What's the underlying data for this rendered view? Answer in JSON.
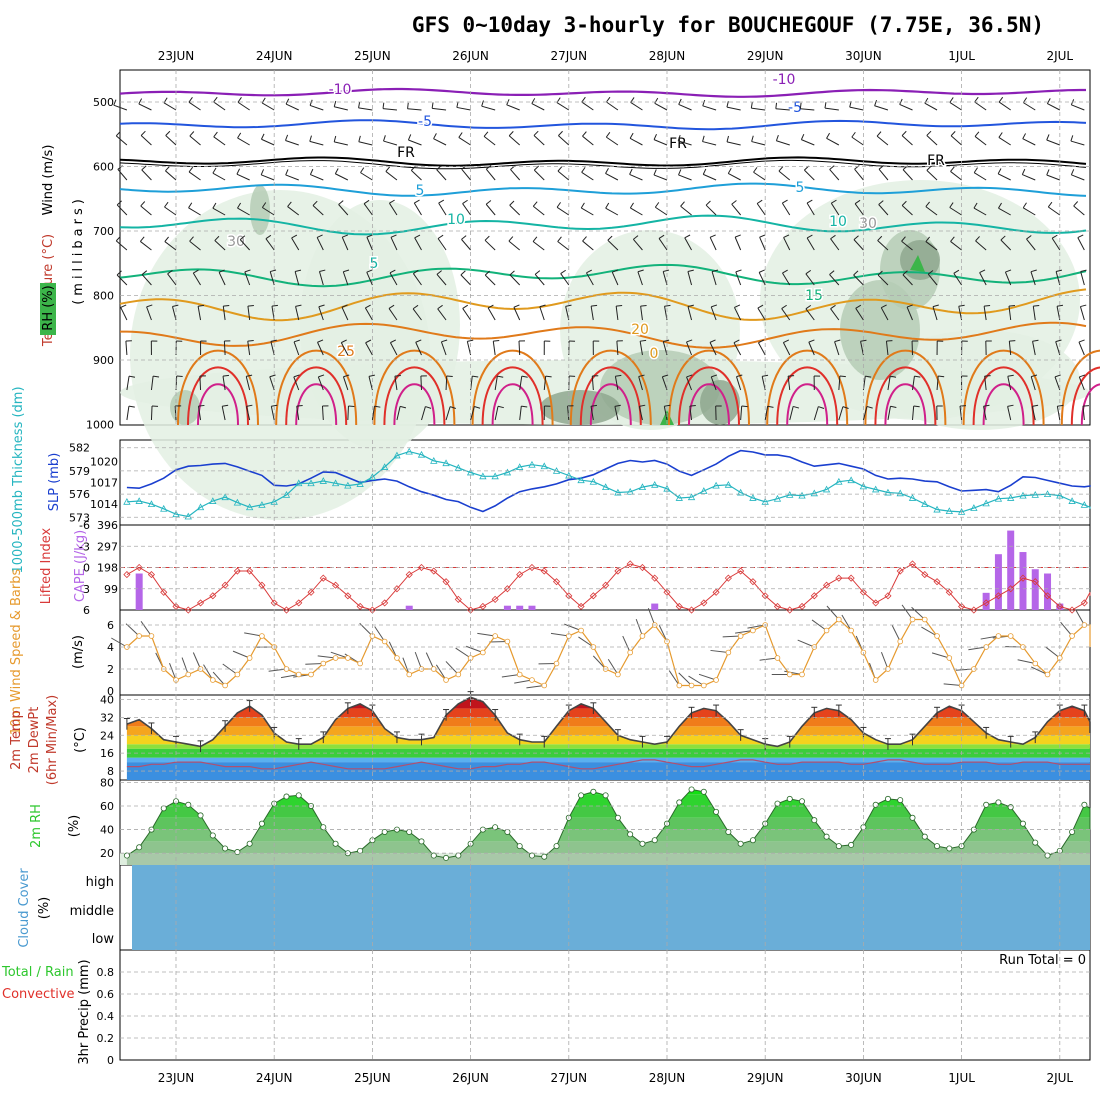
{
  "title": "GFS 0~10day 3-hourly for BOUCHEGOUF (7.75E, 36.5N)",
  "dates": [
    "23JUN",
    "24JUN",
    "25JUN",
    "26JUN",
    "27JUN",
    "28JUN",
    "29JUN",
    "30JUN",
    "1JUL",
    "2JUL"
  ],
  "colors": {
    "grid": "#aaaaaa",
    "rh_light": "#e3f0e3",
    "rh_mid": "#b5cdb5",
    "rh_dark": "#8fa88f",
    "rh_green": "#3cb54a",
    "purple": "#8a1fb5",
    "blue": "#2255dd",
    "lightblue": "#1e9fd8",
    "teal": "#14b4a4",
    "green_t": "#12b27a",
    "orange": "#e09a1e",
    "dkorange": "#e07a1a",
    "red": "#e0302a",
    "magenta": "#d0208a",
    "slp": "#1a3fcf",
    "thick": "#25b5c0",
    "li": "#d93a3a",
    "cape": "#b566e8",
    "wind": "#e69a2e",
    "rh2m": "#2ec72e",
    "cloud": "#6aaed8"
  },
  "panels": {
    "profile": {
      "ylabel_wind": "Wind (m/s)",
      "ylabel_temp": "Temperature (°C)",
      "ylabel_rh": "RH (%)",
      "ylabel_mb": "(millibars)",
      "levels": [
        "500",
        "600",
        "700",
        "800",
        "900",
        "1000"
      ],
      "contour_labels": {
        "m10": "-10",
        "m5": "-5",
        "fr": "FR",
        "p5": "5",
        "p10": "10",
        "p15": "15",
        "p20": "20",
        "p25": "25",
        "p0": "0",
        "rh30": "30"
      }
    },
    "slp": {
      "ylabel_thick": "1000-500mb Thickness (dm)",
      "ylabel_slp": "SLP (mb)",
      "thick_ticks": [
        "582",
        "579",
        "576",
        "573"
      ],
      "slp_ticks": [
        "1020",
        "1017",
        "1014"
      ]
    },
    "li": {
      "ylabel_li": "Lifted Index",
      "ylabel_cape": "CAPE (J/kg)",
      "li_ticks": [
        "-6",
        "-3",
        "0",
        "3",
        "6"
      ],
      "cape_ticks": [
        "396",
        "297",
        "198",
        "99"
      ]
    },
    "wind": {
      "ylabel": "10m Wind Speed & Barbs",
      "unit": "(m/s)",
      "ticks": [
        "6",
        "4",
        "2",
        "0"
      ]
    },
    "temp": {
      "ylabel1": "2m Temp",
      "ylabel2": "2m DewPt",
      "ylabel3": "(6hr Min/Max)",
      "unit": "(°C)",
      "ticks": [
        "40",
        "32",
        "24",
        "16",
        "8"
      ]
    },
    "rh": {
      "ylabel": "2m RH",
      "unit": "(%)",
      "ticks": [
        "80",
        "60",
        "40",
        "20"
      ]
    },
    "cloud": {
      "ylabel": "Cloud Cover",
      "unit": "(%)",
      "levels": [
        "high",
        "middle",
        "low"
      ]
    },
    "precip": {
      "ylabel_total": "Total / Rain",
      "ylabel_conv": "Convective",
      "ylabel": "3hr Precip (mm)",
      "run_total": "Run Total = 0",
      "ticks": [
        "0.8",
        "0.6",
        "0.4",
        "0.2",
        "0"
      ]
    }
  },
  "chart_data": [
    {
      "type": "line",
      "title": "SLP (mb)",
      "x_start": "22JUN 12Z",
      "x_step_hours": 3,
      "ylim": [
        1011,
        1023
      ],
      "series": [
        {
          "name": "SLP (mb)",
          "values": [
            1016.3,
            1016.2,
            1016.8,
            1017.6,
            1018.8,
            1019.3,
            1019.4,
            1019.6,
            1019.7,
            1019.2,
            1018.6,
            1018.0,
            1016.6,
            1016.5,
            1016.8,
            1017.6,
            1018.5,
            1018.4,
            1017.7,
            1017.0,
            1017.3,
            1017.5,
            1017.2,
            1016.4,
            1015.7,
            1015.2,
            1014.6,
            1014.3,
            1013.5,
            1012.9,
            1013.7,
            1014.8,
            1015.7,
            1016.1,
            1016.4,
            1016.8,
            1017.4,
            1017.6,
            1018.1,
            1018.9,
            1019.7,
            1020.1,
            1019.9,
            1020.1,
            1019.6,
            1018.6,
            1018.0,
            1018.8,
            1019.6,
            1020.7,
            1021.5,
            1021.3,
            1020.9,
            1020.9,
            1020.6,
            1019.9,
            1019.3,
            1019.5,
            1019.7,
            1019.3,
            1018.9,
            1018.0,
            1017.5,
            1017.6,
            1017.5,
            1017.2,
            1017.1,
            1016.4,
            1015.8,
            1015.9,
            1016.0,
            1015.7,
            1016.6,
            1017.8,
            1017.7,
            1017.3,
            1016.9,
            1016.5,
            1016.4,
            1016.5,
            1016.4
          ]
        }
      ]
    },
    {
      "type": "line",
      "title": "1000-500mb Thickness (dm)",
      "x_start": "22JUN 12Z",
      "x_step_hours": 3,
      "ylim": [
        572,
        583
      ],
      "series": [
        {
          "name": "1000-500mb Thickness (dm)",
          "values": [
            575.0,
            575.1,
            574.7,
            574.1,
            573.4,
            573.1,
            574.3,
            575.1,
            575.6,
            574.9,
            574.3,
            574.6,
            575.0,
            575.9,
            577.4,
            577.4,
            577.7,
            577.4,
            577.1,
            577.3,
            578.2,
            579.5,
            581.0,
            581.5,
            581.1,
            580.3,
            580.0,
            579.4,
            578.8,
            578.3,
            578.3,
            578.8,
            579.5,
            579.8,
            579.6,
            579.0,
            578.4,
            577.8,
            577.6,
            576.9,
            576.2,
            576.3,
            576.9,
            577.2,
            576.7,
            575.5,
            575.6,
            576.4,
            577.1,
            577.2,
            576.2,
            575.5,
            575.0,
            575.4,
            575.9,
            575.8,
            576.1,
            576.6,
            577.6,
            577.8,
            577.0,
            576.6,
            576.2,
            576.1,
            575.5,
            574.7,
            574.0,
            573.8,
            573.7,
            574.2,
            574.8,
            575.4,
            575.5,
            575.8,
            575.9,
            576.0,
            575.8,
            575.1,
            574.6,
            574.3,
            574.1
          ]
        }
      ]
    },
    {
      "type": "line",
      "title": "Lifted Index",
      "x_start": "22JUN 12Z",
      "x_step_hours": 3,
      "ylim": [
        6,
        -6
      ],
      "series": [
        {
          "name": "Lifted Index",
          "values": [
            1.0,
            0.0,
            1.0,
            3.5,
            5.5,
            6.0,
            5.0,
            4.0,
            2.5,
            0.5,
            0.5,
            2.5,
            5.0,
            6.0,
            5.0,
            3.5,
            1.5,
            2.5,
            4.0,
            5.5,
            6.0,
            5.0,
            3.0,
            1.0,
            0.0,
            0.5,
            2.0,
            4.5,
            6.0,
            5.5,
            4.5,
            3.0,
            1.0,
            0.0,
            0.5,
            2.0,
            4.0,
            5.5,
            4.0,
            2.5,
            0.5,
            -0.5,
            0.0,
            1.5,
            3.5,
            5.5,
            6.0,
            5.0,
            3.5,
            1.5,
            0.5,
            2.0,
            4.0,
            5.5,
            6.0,
            5.5,
            4.0,
            2.5,
            1.5,
            1.5,
            3.5,
            5.0,
            4.0,
            0.5,
            -0.5,
            1.0,
            2.0,
            3.5,
            5.5,
            6.0,
            5.0,
            4.0,
            3.0,
            1.5,
            2.0,
            4.0,
            5.5,
            6.0,
            5.0,
            3.5,
            4.0
          ]
        }
      ]
    },
    {
      "type": "bar",
      "title": "CAPE (J/kg)",
      "x_start": "22JUN 12Z",
      "x_step_hours": 3,
      "ylim": [
        0,
        396
      ],
      "series": [
        {
          "name": "CAPE (J/kg)",
          "values": [
            0,
            170,
            0,
            0,
            0,
            0,
            0,
            0,
            0,
            0,
            0,
            0,
            0,
            0,
            0,
            0,
            0,
            0,
            0,
            0,
            0,
            0,
            0,
            20,
            0,
            0,
            0,
            0,
            0,
            0,
            0,
            20,
            20,
            20,
            0,
            0,
            0,
            0,
            0,
            0,
            0,
            0,
            0,
            30,
            0,
            0,
            0,
            0,
            0,
            0,
            0,
            0,
            0,
            0,
            0,
            0,
            0,
            0,
            0,
            0,
            0,
            0,
            0,
            0,
            0,
            0,
            0,
            0,
            0,
            0,
            80,
            260,
            370,
            270,
            190,
            170,
            30,
            0,
            0,
            0,
            0,
            0,
            0,
            0,
            0,
            0,
            0,
            0,
            0,
            0,
            0,
            0,
            0,
            0,
            0,
            0,
            0,
            0,
            220,
            210,
            70,
            0
          ]
        }
      ]
    },
    {
      "type": "line",
      "title": "10m Wind Speed",
      "x_start": "22JUN 12Z",
      "x_step_hours": 3,
      "ylim": [
        0,
        7
      ],
      "series": [
        {
          "name": "10m Wind Speed (m/s)",
          "values": [
            4.0,
            5.0,
            5.0,
            2.0,
            1.0,
            1.5,
            2.0,
            1.0,
            0.5,
            1.5,
            3.0,
            5.0,
            4.0,
            2.0,
            1.5,
            1.5,
            2.5,
            3.0,
            3.0,
            2.5,
            5.0,
            4.5,
            3.0,
            1.5,
            2.0,
            2.0,
            1.0,
            1.5,
            3.0,
            3.5,
            5.0,
            4.5,
            1.5,
            1.0,
            0.5,
            2.5,
            5.0,
            5.5,
            4.0,
            2.0,
            1.5,
            3.5,
            5.0,
            6.0,
            4.5,
            0.5,
            0.5,
            0.5,
            1.0,
            3.5,
            5.0,
            5.5,
            6.0,
            3.0,
            1.5,
            1.5,
            4.0,
            5.5,
            6.5,
            5.5,
            3.5,
            1.0,
            2.0,
            4.5,
            6.5,
            6.5,
            5.0,
            3.0,
            0.5,
            2.0,
            4.0,
            5.0,
            5.0,
            4.0,
            2.5,
            1.5,
            3.0,
            5.0,
            6.0,
            6.0,
            4.0
          ]
        }
      ]
    },
    {
      "type": "area",
      "title": "2m Temp",
      "x_start": "22JUN 12Z",
      "x_step_hours": 3,
      "ylim": [
        4,
        42
      ],
      "series": [
        {
          "name": "2m Temp (°C)",
          "values": [
            29,
            31,
            27,
            22,
            21,
            20,
            19,
            22,
            28,
            34,
            37,
            33,
            25,
            21,
            20,
            20,
            23,
            31,
            36,
            38,
            35,
            27,
            23,
            22,
            22,
            23,
            33,
            38,
            41,
            39,
            33,
            25,
            22,
            21,
            21,
            28,
            35,
            38,
            36,
            30,
            24,
            22,
            21,
            20,
            21,
            28,
            34,
            36,
            35,
            30,
            24,
            22,
            20,
            19,
            21,
            28,
            34,
            36,
            35,
            31,
            25,
            22,
            20,
            20,
            22,
            28,
            34,
            37,
            35,
            30,
            25,
            22,
            21,
            20,
            23,
            30,
            35,
            37,
            35,
            30,
            25
          ]
        },
        {
          "name": "2m DewPt (°C)",
          "values": [
            10,
            10,
            11,
            11,
            12,
            12,
            12,
            11,
            10,
            10,
            10,
            9,
            9,
            10,
            11,
            12,
            11,
            10,
            9,
            9,
            9,
            9,
            10,
            11,
            12,
            11,
            10,
            9,
            9,
            10,
            10,
            11,
            11,
            12,
            12,
            11,
            10,
            9,
            9,
            10,
            11,
            12,
            13,
            13,
            12,
            11,
            10,
            10,
            11,
            12,
            13,
            13,
            12,
            11,
            11,
            12,
            12,
            12,
            12,
            11,
            11,
            12,
            13,
            13,
            12,
            11,
            11,
            11,
            12,
            12,
            12,
            11,
            11,
            12,
            12,
            12,
            11,
            11,
            11,
            11,
            11
          ]
        }
      ]
    },
    {
      "type": "area",
      "title": "2m RH",
      "x_start": "22JUN 12Z",
      "x_step_hours": 3,
      "ylim": [
        10,
        82
      ],
      "series": [
        {
          "name": "2m RH (%)",
          "values": [
            18,
            25,
            40,
            58,
            64,
            61,
            52,
            35,
            24,
            21,
            28,
            45,
            62,
            68,
            69,
            60,
            42,
            28,
            20,
            22,
            31,
            38,
            40,
            38,
            30,
            18,
            16,
            18,
            28,
            40,
            42,
            38,
            26,
            18,
            17,
            26,
            50,
            69,
            72,
            69,
            50,
            36,
            28,
            31,
            45,
            63,
            74,
            72,
            55,
            38,
            28,
            31,
            45,
            62,
            66,
            64,
            48,
            34,
            26,
            27,
            42,
            61,
            66,
            65,
            50,
            34,
            26,
            24,
            26,
            40,
            61,
            63,
            59,
            45,
            29,
            18,
            22,
            38,
            61,
            58,
            40
          ]
        }
      ]
    },
    {
      "type": "bar",
      "title": "Cloud Cover",
      "categories": [
        "high",
        "middle",
        "low"
      ],
      "values": [
        100,
        100,
        100
      ]
    },
    {
      "type": "bar",
      "title": "3hr Precip (mm)",
      "x_start": "22JUN 12Z",
      "x_step_hours": 3,
      "ylim": [
        0,
        1
      ],
      "series": [
        {
          "name": "Total / Rain",
          "values": [
            0,
            0,
            0,
            0,
            0,
            0,
            0,
            0,
            0,
            0,
            0,
            0,
            0,
            0,
            0,
            0,
            0,
            0,
            0,
            0,
            0,
            0,
            0,
            0,
            0,
            0,
            0,
            0,
            0,
            0,
            0,
            0,
            0,
            0,
            0,
            0,
            0,
            0,
            0,
            0,
            0,
            0,
            0,
            0,
            0,
            0,
            0,
            0,
            0,
            0,
            0,
            0,
            0,
            0,
            0,
            0,
            0,
            0,
            0,
            0,
            0,
            0,
            0,
            0,
            0,
            0,
            0,
            0,
            0,
            0,
            0,
            0,
            0,
            0,
            0,
            0,
            0,
            0,
            0,
            0,
            0
          ]
        }
      ]
    }
  ]
}
